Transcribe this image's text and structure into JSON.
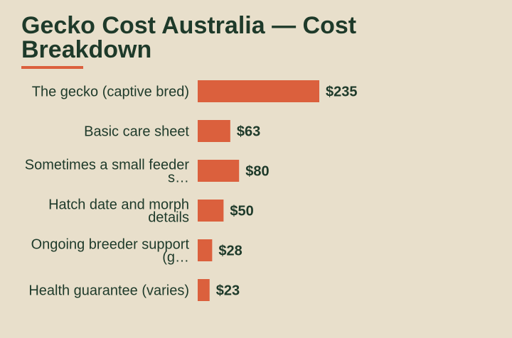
{
  "chart_title": "Gecko Cost Australia — Cost Breakdown",
  "colors": {
    "background": "#e8dfcb",
    "bar": "#db603d",
    "text": "#1e3a2a"
  },
  "chart_data": {
    "type": "bar",
    "orientation": "horizontal",
    "title": "Gecko Cost Australia — Cost Breakdown",
    "categories": [
      "The gecko (captive bred)",
      "Basic care sheet",
      "Sometimes a small feeder s…",
      "Hatch date and morph details",
      "Ongoing breeder support (g…",
      "Health guarantee (varies)"
    ],
    "category_lines": [
      [
        "The gecko (captive bred)"
      ],
      [
        "Basic care sheet"
      ],
      [
        "Sometimes a small feeder",
        "s…"
      ],
      [
        "Hatch date and morph",
        "details"
      ],
      [
        "Ongoing breeder support",
        "(g…"
      ],
      [
        "Health guarantee (varies)"
      ]
    ],
    "values": [
      235,
      63,
      80,
      50,
      28,
      23
    ],
    "value_labels": [
      "$235",
      "$63",
      "$80",
      "$50",
      "$28",
      "$23"
    ],
    "xlabel": "",
    "ylabel": "",
    "grid": false,
    "legend": "none"
  }
}
